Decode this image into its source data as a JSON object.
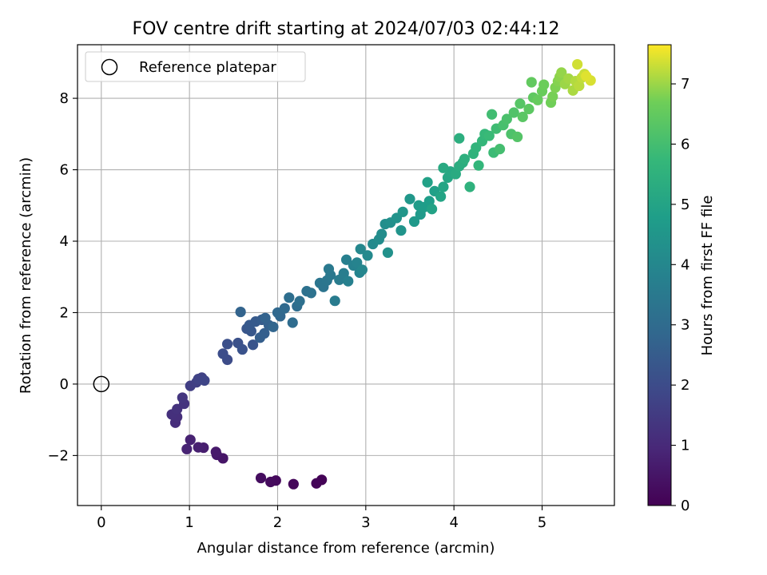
{
  "chart_data": {
    "type": "scatter",
    "title": "FOV centre drift starting at 2024/07/03 02:44:12",
    "xlabel": "Angular distance from reference (arcmin)",
    "ylabel": "Rotation from reference (arcmin)",
    "xlim": [
      -0.27,
      5.82
    ],
    "ylim": [
      -3.4,
      9.5
    ],
    "xticks": [
      0,
      1,
      2,
      3,
      4,
      5
    ],
    "xtick_labels": [
      "0",
      "1",
      "2",
      "3",
      "4",
      "5"
    ],
    "yticks": [
      -2,
      0,
      2,
      4,
      6,
      8
    ],
    "ytick_labels": [
      "−2",
      "0",
      "2",
      "4",
      "6",
      "8"
    ],
    "grid": true,
    "legend": {
      "placement": "upper-left",
      "entries": [
        {
          "label": "Reference platepar",
          "marker": "open-circle",
          "x": 0,
          "y": 0
        }
      ]
    },
    "colorbar": {
      "label": "Hours from first FF file",
      "colormap": "viridis",
      "range": [
        0,
        7.65
      ],
      "ticks": [
        0,
        1,
        2,
        3,
        4,
        5,
        6,
        7
      ],
      "tick_labels": [
        "0",
        "1",
        "2",
        "3",
        "4",
        "5",
        "6",
        "7"
      ]
    },
    "series": [
      {
        "color_by": "hours",
        "points": [
          [
            2.5,
            -2.68,
            0.05
          ],
          [
            2.44,
            -2.78,
            0.1
          ],
          [
            2.18,
            -2.8,
            0.15
          ],
          [
            1.98,
            -2.7,
            0.2
          ],
          [
            1.92,
            -2.74,
            0.25
          ],
          [
            1.81,
            -2.63,
            0.3
          ],
          [
            1.38,
            -2.08,
            0.5
          ],
          [
            1.31,
            -1.98,
            0.55
          ],
          [
            1.3,
            -1.9,
            0.6
          ],
          [
            1.16,
            -1.78,
            0.7
          ],
          [
            1.1,
            -1.77,
            0.75
          ],
          [
            1.01,
            -1.56,
            0.8
          ],
          [
            0.97,
            -1.82,
            0.85
          ],
          [
            0.84,
            -1.08,
            1.1
          ],
          [
            0.86,
            -0.92,
            1.15
          ],
          [
            0.8,
            -0.85,
            1.2
          ],
          [
            0.86,
            -0.7,
            1.25
          ],
          [
            0.94,
            -0.55,
            1.3
          ],
          [
            0.92,
            -0.38,
            1.35
          ],
          [
            1.01,
            -0.05,
            1.6
          ],
          [
            1.08,
            0.05,
            1.65
          ],
          [
            1.14,
            0.18,
            1.7
          ],
          [
            1.1,
            0.14,
            1.75
          ],
          [
            1.17,
            0.1,
            1.8
          ],
          [
            1.43,
            0.68,
            2.0
          ],
          [
            1.38,
            0.85,
            2.05
          ],
          [
            1.43,
            1.12,
            2.1
          ],
          [
            1.55,
            1.15,
            2.15
          ],
          [
            1.6,
            0.97,
            2.2
          ],
          [
            1.72,
            1.1,
            2.25
          ],
          [
            1.65,
            1.55,
            2.3
          ],
          [
            1.7,
            1.48,
            2.35
          ],
          [
            1.68,
            1.65,
            2.4
          ],
          [
            1.75,
            1.75,
            2.45
          ],
          [
            1.82,
            1.8,
            2.5
          ],
          [
            1.8,
            1.3,
            2.55
          ],
          [
            1.85,
            1.42,
            2.6
          ],
          [
            1.9,
            1.65,
            2.65
          ],
          [
            1.86,
            1.85,
            2.7
          ],
          [
            1.58,
            2.02,
            2.75
          ],
          [
            1.95,
            1.6,
            2.8
          ],
          [
            2.03,
            1.9,
            2.85
          ],
          [
            2.0,
            2.0,
            2.9
          ],
          [
            2.08,
            2.12,
            2.95
          ],
          [
            2.17,
            1.72,
            3.0
          ],
          [
            2.22,
            2.18,
            3.05
          ],
          [
            2.13,
            2.42,
            3.1
          ],
          [
            2.25,
            2.32,
            3.15
          ],
          [
            2.33,
            2.6,
            3.2
          ],
          [
            2.38,
            2.55,
            3.25
          ],
          [
            2.52,
            2.72,
            3.3
          ],
          [
            2.48,
            2.83,
            3.35
          ],
          [
            2.56,
            2.9,
            3.4
          ],
          [
            2.6,
            3.05,
            3.45
          ],
          [
            2.58,
            3.22,
            3.5
          ],
          [
            2.65,
            2.33,
            3.55
          ],
          [
            2.7,
            2.92,
            3.6
          ],
          [
            2.75,
            3.1,
            3.65
          ],
          [
            2.78,
            3.48,
            3.7
          ],
          [
            2.8,
            2.88,
            3.75
          ],
          [
            2.86,
            3.32,
            3.8
          ],
          [
            2.9,
            3.4,
            3.85
          ],
          [
            2.93,
            3.12,
            3.9
          ],
          [
            2.96,
            3.2,
            3.95
          ],
          [
            2.94,
            3.78,
            4.0
          ],
          [
            3.02,
            3.6,
            4.05
          ],
          [
            3.08,
            3.92,
            4.1
          ],
          [
            3.15,
            4.05,
            4.15
          ],
          [
            3.18,
            4.2,
            4.2
          ],
          [
            3.22,
            4.48,
            4.25
          ],
          [
            3.28,
            4.52,
            4.3
          ],
          [
            3.25,
            3.68,
            4.35
          ],
          [
            3.35,
            4.65,
            4.4
          ],
          [
            3.4,
            4.3,
            4.45
          ],
          [
            3.42,
            4.82,
            4.5
          ],
          [
            3.5,
            5.18,
            4.55
          ],
          [
            3.55,
            4.55,
            4.6
          ],
          [
            3.62,
            4.75,
            4.65
          ],
          [
            3.6,
            5.0,
            4.7
          ],
          [
            3.66,
            4.95,
            4.75
          ],
          [
            3.72,
            5.12,
            4.8
          ],
          [
            3.78,
            5.4,
            4.85
          ],
          [
            3.7,
            5.65,
            4.9
          ],
          [
            3.75,
            4.9,
            4.95
          ],
          [
            3.85,
            5.25,
            5.0
          ],
          [
            3.88,
            5.52,
            5.05
          ],
          [
            3.93,
            5.78,
            5.1
          ],
          [
            3.96,
            5.95,
            5.15
          ],
          [
            3.88,
            6.05,
            5.2
          ],
          [
            4.02,
            5.88,
            5.25
          ],
          [
            4.06,
            6.1,
            5.3
          ],
          [
            4.1,
            6.2,
            5.35
          ],
          [
            4.06,
            6.88,
            5.4
          ],
          [
            4.12,
            6.3,
            5.45
          ],
          [
            4.18,
            5.52,
            5.5
          ],
          [
            4.22,
            6.45,
            5.55
          ],
          [
            4.25,
            6.62,
            5.6
          ],
          [
            4.28,
            6.12,
            5.65
          ],
          [
            4.32,
            6.8,
            5.7
          ],
          [
            4.35,
            7.0,
            5.75
          ],
          [
            4.4,
            6.95,
            5.8
          ],
          [
            4.45,
            6.48,
            5.85
          ],
          [
            4.48,
            7.15,
            5.9
          ],
          [
            4.43,
            7.55,
            5.95
          ],
          [
            4.52,
            6.58,
            6.0
          ],
          [
            4.56,
            7.25,
            6.05
          ],
          [
            4.6,
            7.42,
            6.1
          ],
          [
            4.65,
            7.0,
            6.15
          ],
          [
            4.68,
            7.6,
            6.2
          ],
          [
            4.72,
            6.92,
            6.25
          ],
          [
            4.75,
            7.85,
            6.3
          ],
          [
            4.78,
            7.48,
            6.35
          ],
          [
            4.85,
            7.7,
            6.4
          ],
          [
            4.9,
            8.02,
            6.45
          ],
          [
            4.88,
            8.45,
            6.5
          ],
          [
            4.95,
            7.95,
            6.55
          ],
          [
            5.0,
            8.2,
            6.6
          ],
          [
            5.02,
            8.38,
            6.65
          ],
          [
            5.1,
            7.88,
            6.7
          ],
          [
            5.12,
            8.05,
            6.75
          ],
          [
            5.15,
            8.3,
            6.8
          ],
          [
            5.18,
            8.48,
            6.85
          ],
          [
            5.2,
            8.6,
            6.9
          ],
          [
            5.22,
            8.72,
            6.95
          ],
          [
            5.26,
            8.4,
            7.0
          ],
          [
            5.3,
            8.55,
            7.05
          ],
          [
            5.35,
            8.22,
            7.1
          ],
          [
            5.38,
            8.48,
            7.15
          ],
          [
            5.42,
            8.35,
            7.2
          ],
          [
            5.45,
            8.58,
            7.25
          ],
          [
            5.48,
            8.68,
            7.3
          ],
          [
            5.4,
            8.95,
            7.35
          ],
          [
            5.55,
            8.5,
            7.4
          ],
          [
            5.5,
            8.62,
            7.45
          ]
        ]
      }
    ]
  }
}
